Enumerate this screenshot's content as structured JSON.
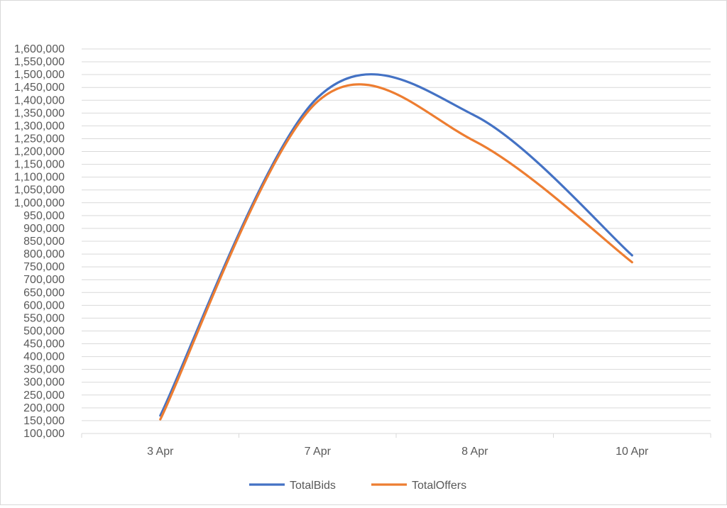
{
  "chart_data": {
    "type": "line",
    "smooth": true,
    "categories": [
      "3 Apr",
      "7 Apr",
      "8 Apr",
      "10 Apr"
    ],
    "series": [
      {
        "name": "TotalBids",
        "color": "#4472C4",
        "values": [
          170000,
          1410000,
          1340000,
          795000
        ]
      },
      {
        "name": "TotalOffers",
        "color": "#ED7D31",
        "values": [
          155000,
          1395000,
          1240000,
          768000
        ]
      }
    ],
    "ylim": [
      100000,
      1600000
    ],
    "ytick_step": 50000,
    "ytick_labels": [
      "100,000",
      "150,000",
      "200,000",
      "250,000",
      "300,000",
      "350,000",
      "400,000",
      "450,000",
      "500,000",
      "550,000",
      "600,000",
      "650,000",
      "700,000",
      "750,000",
      "800,000",
      "850,000",
      "900,000",
      "950,000",
      "1,000,000",
      "1,050,000",
      "1,100,000",
      "1,150,000",
      "1,200,000",
      "1,250,000",
      "1,300,000",
      "1,350,000",
      "1,400,000",
      "1,450,000",
      "1,500,000",
      "1,550,000",
      "1,600,000"
    ],
    "grid": true,
    "legend": "bottom",
    "gridline_color": "#d9d9d9",
    "text_color": "#595959"
  }
}
